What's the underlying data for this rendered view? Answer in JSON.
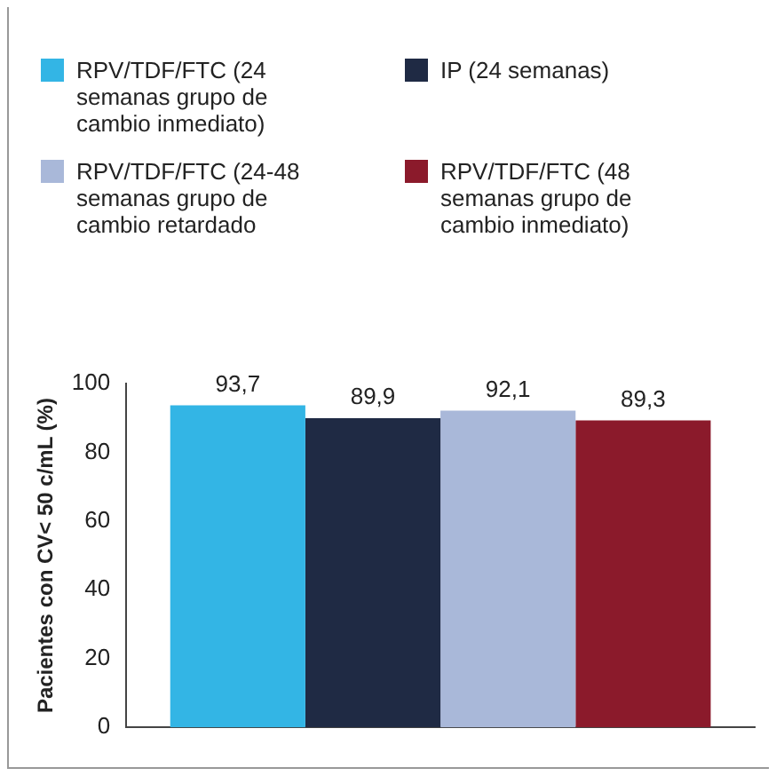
{
  "chart_data": {
    "type": "bar",
    "ylabel": "Pacientes con CV< 50 c/mL (%)",
    "categories": [
      null
    ],
    "series": [
      {
        "name": "RPV/TDF/FTC (24 semanas grupo de cambio inmediato)",
        "color": "#33b5e5",
        "values": [
          93.7
        ],
        "value_labels": [
          "93,7"
        ]
      },
      {
        "name": "IP (24 semanas)",
        "color": "#1f2a44",
        "values": [
          89.9
        ],
        "value_labels": [
          "89,9"
        ]
      },
      {
        "name": "RPV/TDF/FTC (24-48 semanas grupo de cambio retardado",
        "color": "#a9b8d9",
        "values": [
          92.1
        ],
        "value_labels": [
          "92,1"
        ]
      },
      {
        "name": "RPV/TDF/FTC (48 semanas grupo de cambio inmediato)",
        "color": "#8b1a2b",
        "values": [
          89.3
        ],
        "value_labels": [
          "89,3"
        ]
      }
    ],
    "ylim": [
      0,
      100
    ],
    "yticks": [
      0,
      20,
      40,
      60,
      80,
      100
    ],
    "grid": false,
    "legend": "top"
  }
}
